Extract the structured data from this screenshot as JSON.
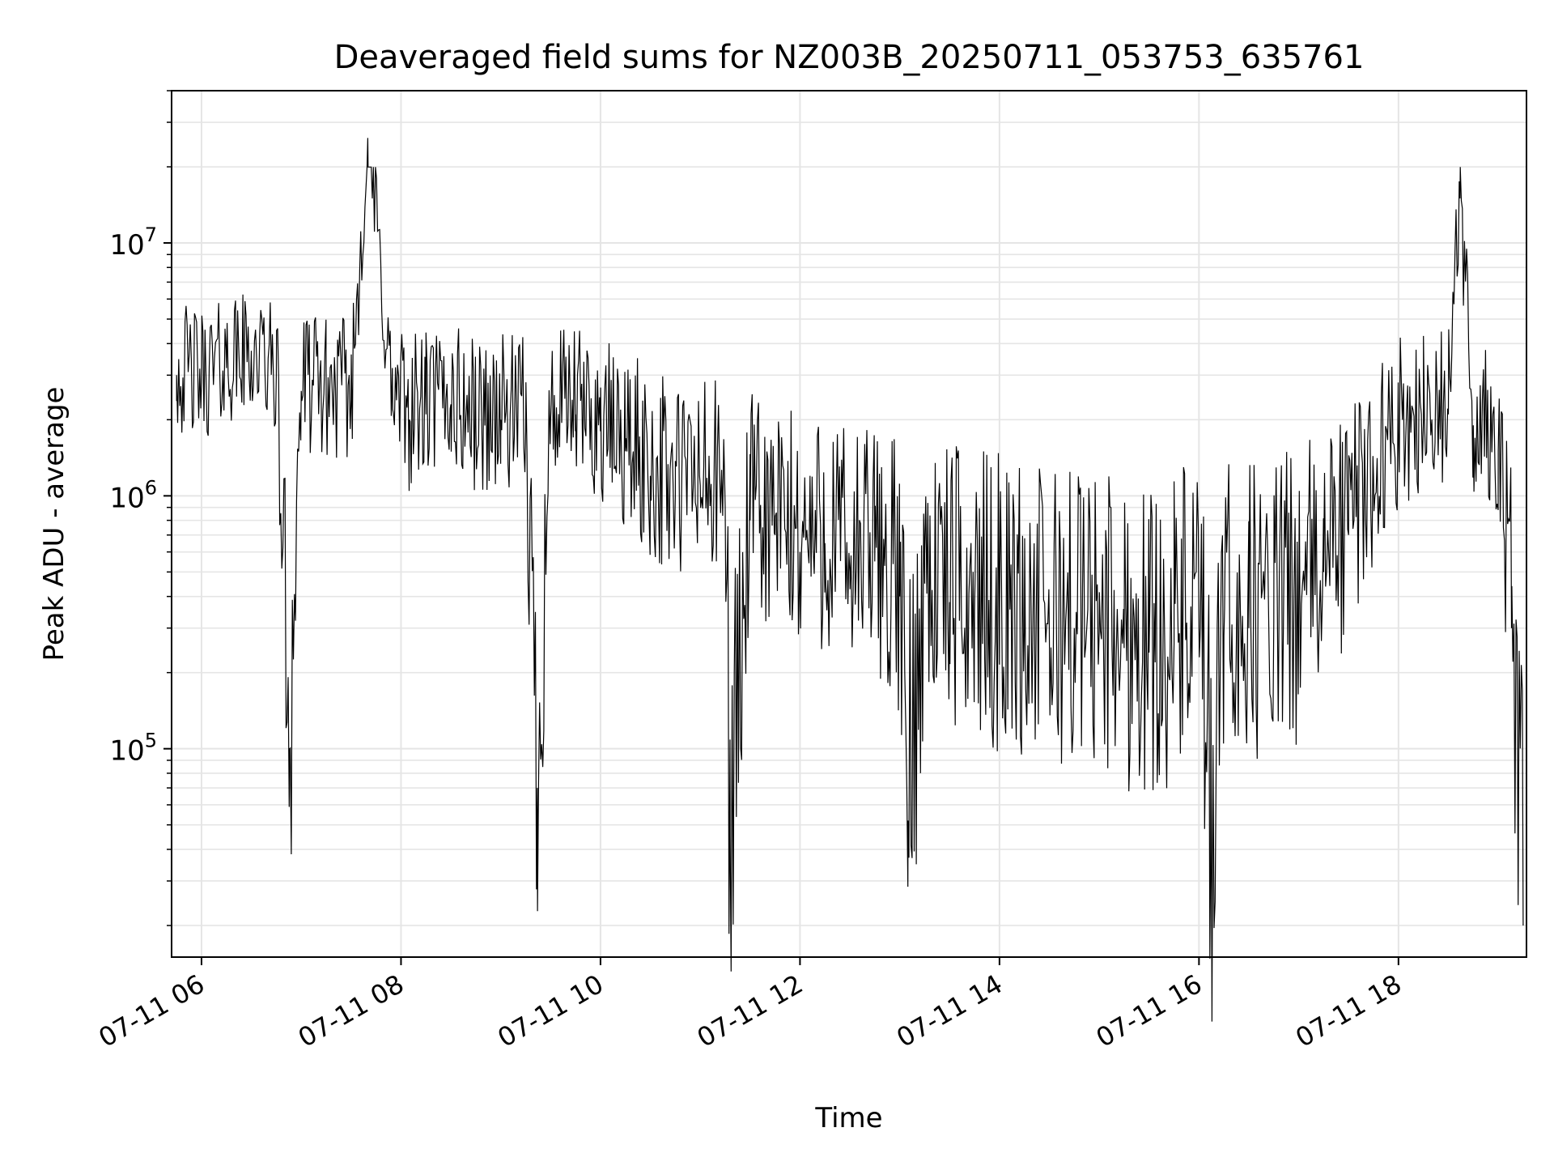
{
  "chart_data": {
    "type": "line",
    "title": "Deaveraged field sums for NZ003B_20250711_053753_635761",
    "xlabel": "Time",
    "ylabel": "Peak ADU - average",
    "yscale": "log",
    "grid": true,
    "legend": "none",
    "series_color": "#000000",
    "grid_color": "#e5e5e5",
    "xlim": [
      "2025-07-11 05:42",
      "2025-07-11 19:17"
    ],
    "ylim": [
      15000,
      40000000
    ],
    "xticks": [
      {
        "value": "2025-07-11 06:00",
        "label": "07-11 06"
      },
      {
        "value": "2025-07-11 08:00",
        "label": "07-11 08"
      },
      {
        "value": "2025-07-11 10:00",
        "label": "07-11 10"
      },
      {
        "value": "2025-07-11 12:00",
        "label": "07-11 12"
      },
      {
        "value": "2025-07-11 14:00",
        "label": "07-11 14"
      },
      {
        "value": "2025-07-11 16:00",
        "label": "07-11 16"
      },
      {
        "value": "2025-07-11 18:00",
        "label": "07-11 18"
      }
    ],
    "yticks": [
      {
        "value": 100000,
        "base": "10",
        "exp": "5"
      },
      {
        "value": 1000000,
        "base": "10",
        "exp": "6"
      },
      {
        "value": 10000000,
        "base": "10",
        "exp": "7"
      }
    ],
    "series": [
      {
        "x": [
          "2025-07-11 05:45",
          "2025-07-11 06:00",
          "2025-07-11 06:15",
          "2025-07-11 06:30",
          "2025-07-11 06:45",
          "2025-07-11 06:53",
          "2025-07-11 07:00",
          "2025-07-11 07:15",
          "2025-07-11 07:30",
          "2025-07-11 07:40",
          "2025-07-11 07:55",
          "2025-07-11 08:05",
          "2025-07-11 08:15",
          "2025-07-11 08:30",
          "2025-07-11 08:45",
          "2025-07-11 09:00",
          "2025-07-11 09:15",
          "2025-07-11 09:22",
          "2025-07-11 09:30",
          "2025-07-11 09:45",
          "2025-07-11 10:00",
          "2025-07-11 10:15",
          "2025-07-11 10:30",
          "2025-07-11 10:45",
          "2025-07-11 11:00",
          "2025-07-11 11:15",
          "2025-07-11 11:18",
          "2025-07-11 11:30",
          "2025-07-11 11:45",
          "2025-07-11 12:00",
          "2025-07-11 12:15",
          "2025-07-11 12:30",
          "2025-07-11 12:45",
          "2025-07-11 13:00",
          "2025-07-11 13:05",
          "2025-07-11 13:15",
          "2025-07-11 13:30",
          "2025-07-11 13:45",
          "2025-07-11 14:00",
          "2025-07-11 14:15",
          "2025-07-11 14:30",
          "2025-07-11 14:45",
          "2025-07-11 15:00",
          "2025-07-11 15:15",
          "2025-07-11 15:30",
          "2025-07-11 15:45",
          "2025-07-11 16:00",
          "2025-07-11 16:07",
          "2025-07-11 16:15",
          "2025-07-11 16:30",
          "2025-07-11 16:45",
          "2025-07-11 17:00",
          "2025-07-11 17:15",
          "2025-07-11 17:30",
          "2025-07-11 17:45",
          "2025-07-11 18:00",
          "2025-07-11 18:15",
          "2025-07-11 18:30",
          "2025-07-11 18:37",
          "2025-07-11 18:45",
          "2025-07-11 19:00",
          "2025-07-11 19:08",
          "2025-07-11 19:15"
        ],
        "y": [
          3000000,
          2800000,
          3200000,
          3500000,
          3000000,
          100000,
          2600000,
          2500000,
          2400000,
          26000000,
          2200000,
          2000000,
          2100000,
          2300000,
          1900000,
          2000000,
          1800000,
          70000,
          2000000,
          2100000,
          1800000,
          1500000,
          1200000,
          1000000,
          1100000,
          900000,
          45000,
          800000,
          700000,
          600000,
          650000,
          500000,
          550000,
          400000,
          52000,
          450000,
          380000,
          350000,
          330000,
          300000,
          280000,
          300000,
          290000,
          250000,
          240000,
          260000,
          300000,
          34000,
          280000,
          300000,
          320000,
          350000,
          500000,
          700000,
          1200000,
          1800000,
          2000000,
          2100000,
          15000000,
          1900000,
          1500000,
          300000,
          20000
        ]
      }
    ]
  }
}
